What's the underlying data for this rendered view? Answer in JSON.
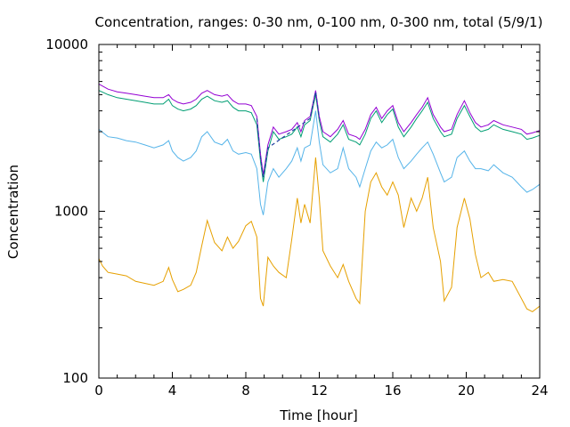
{
  "chart_data": {
    "type": "line",
    "title": "Concentration, ranges: 0-30 nm, 0-100 nm, 0-300 nm, total (5/9/1)",
    "xlabel": "Time [hour]",
    "ylabel": "Concentration",
    "xlim": [
      0,
      24
    ],
    "ylim": [
      100,
      10000
    ],
    "yscale": "log",
    "grid": false,
    "legend": "none",
    "x_ticks": [
      "0",
      "4",
      "8",
      "12",
      "16",
      "20",
      "24"
    ],
    "y_ticks": [
      "100",
      "1000",
      "10000"
    ],
    "series": [
      {
        "color": "#e6a000",
        "points": [
          [
            0,
            520
          ],
          [
            0.2,
            470
          ],
          [
            0.5,
            430
          ],
          [
            1,
            420
          ],
          [
            1.5,
            410
          ],
          [
            2,
            380
          ],
          [
            2.5,
            370
          ],
          [
            3,
            360
          ],
          [
            3.5,
            380
          ],
          [
            3.8,
            460
          ],
          [
            4,
            390
          ],
          [
            4.3,
            330
          ],
          [
            4.6,
            340
          ],
          [
            5,
            360
          ],
          [
            5.3,
            430
          ],
          [
            5.6,
            620
          ],
          [
            5.9,
            880
          ],
          [
            6.3,
            650
          ],
          [
            6.7,
            580
          ],
          [
            7,
            700
          ],
          [
            7.3,
            600
          ],
          [
            7.6,
            660
          ],
          [
            8,
            820
          ],
          [
            8.3,
            870
          ],
          [
            8.6,
            700
          ],
          [
            8.8,
            300
          ],
          [
            8.95,
            270
          ],
          [
            9.2,
            530
          ],
          [
            9.5,
            470
          ],
          [
            9.8,
            430
          ],
          [
            10.2,
            400
          ],
          [
            10.5,
            680
          ],
          [
            10.8,
            1200
          ],
          [
            11,
            850
          ],
          [
            11.2,
            1100
          ],
          [
            11.5,
            850
          ],
          [
            11.8,
            2100
          ],
          [
            12,
            1200
          ],
          [
            12.2,
            580
          ],
          [
            12.6,
            470
          ],
          [
            13,
            400
          ],
          [
            13.3,
            480
          ],
          [
            13.6,
            380
          ],
          [
            14,
            300
          ],
          [
            14.2,
            280
          ],
          [
            14.5,
            1000
          ],
          [
            14.8,
            1500
          ],
          [
            15.1,
            1700
          ],
          [
            15.4,
            1400
          ],
          [
            15.7,
            1250
          ],
          [
            16,
            1500
          ],
          [
            16.3,
            1250
          ],
          [
            16.6,
            800
          ],
          [
            17,
            1200
          ],
          [
            17.3,
            1000
          ],
          [
            17.6,
            1200
          ],
          [
            17.9,
            1600
          ],
          [
            18.2,
            800
          ],
          [
            18.6,
            500
          ],
          [
            18.8,
            290
          ],
          [
            19.2,
            350
          ],
          [
            19.5,
            800
          ],
          [
            19.9,
            1200
          ],
          [
            20.2,
            900
          ],
          [
            20.5,
            550
          ],
          [
            20.8,
            400
          ],
          [
            21.2,
            430
          ],
          [
            21.5,
            380
          ],
          [
            22,
            390
          ],
          [
            22.5,
            380
          ],
          [
            23,
            300
          ],
          [
            23.3,
            260
          ],
          [
            23.6,
            250
          ],
          [
            24,
            270
          ]
        ]
      },
      {
        "color": "#56b4e9",
        "points": [
          [
            0,
            3100
          ],
          [
            0.5,
            2800
          ],
          [
            1,
            2750
          ],
          [
            1.5,
            2650
          ],
          [
            2,
            2600
          ],
          [
            2.5,
            2500
          ],
          [
            3,
            2400
          ],
          [
            3.5,
            2500
          ],
          [
            3.8,
            2650
          ],
          [
            4,
            2300
          ],
          [
            4.3,
            2100
          ],
          [
            4.6,
            2000
          ],
          [
            5,
            2100
          ],
          [
            5.3,
            2300
          ],
          [
            5.6,
            2800
          ],
          [
            5.9,
            3000
          ],
          [
            6.3,
            2600
          ],
          [
            6.7,
            2500
          ],
          [
            7,
            2700
          ],
          [
            7.3,
            2300
          ],
          [
            7.6,
            2200
          ],
          [
            8,
            2250
          ],
          [
            8.3,
            2200
          ],
          [
            8.6,
            1800
          ],
          [
            8.8,
            1100
          ],
          [
            8.95,
            950
          ],
          [
            9.2,
            1500
          ],
          [
            9.5,
            1800
          ],
          [
            9.8,
            1600
          ],
          [
            10.2,
            1800
          ],
          [
            10.5,
            2000
          ],
          [
            10.8,
            2400
          ],
          [
            11,
            2000
          ],
          [
            11.2,
            2400
          ],
          [
            11.5,
            2500
          ],
          [
            11.8,
            4000
          ],
          [
            12,
            2600
          ],
          [
            12.2,
            1900
          ],
          [
            12.6,
            1700
          ],
          [
            13,
            1800
          ],
          [
            13.3,
            2400
          ],
          [
            13.6,
            1800
          ],
          [
            14,
            1600
          ],
          [
            14.2,
            1400
          ],
          [
            14.5,
            1800
          ],
          [
            14.8,
            2300
          ],
          [
            15.1,
            2600
          ],
          [
            15.4,
            2400
          ],
          [
            15.7,
            2500
          ],
          [
            16,
            2700
          ],
          [
            16.3,
            2100
          ],
          [
            16.6,
            1800
          ],
          [
            17,
            2000
          ],
          [
            17.3,
            2200
          ],
          [
            17.6,
            2400
          ],
          [
            17.9,
            2600
          ],
          [
            18.2,
            2200
          ],
          [
            18.6,
            1700
          ],
          [
            18.8,
            1500
          ],
          [
            19.2,
            1600
          ],
          [
            19.5,
            2100
          ],
          [
            19.9,
            2300
          ],
          [
            20.2,
            2000
          ],
          [
            20.5,
            1800
          ],
          [
            20.8,
            1800
          ],
          [
            21.2,
            1750
          ],
          [
            21.5,
            1900
          ],
          [
            22,
            1700
          ],
          [
            22.5,
            1600
          ],
          [
            23,
            1400
          ],
          [
            23.3,
            1300
          ],
          [
            23.6,
            1350
          ],
          [
            24,
            1450
          ]
        ]
      },
      {
        "color": "#009e73",
        "points": [
          [
            0,
            5300
          ],
          [
            0.5,
            5000
          ],
          [
            1,
            4800
          ],
          [
            1.5,
            4700
          ],
          [
            2,
            4600
          ],
          [
            2.5,
            4500
          ],
          [
            3,
            4400
          ],
          [
            3.5,
            4400
          ],
          [
            3.8,
            4700
          ],
          [
            4,
            4300
          ],
          [
            4.3,
            4100
          ],
          [
            4.6,
            4000
          ],
          [
            5,
            4100
          ],
          [
            5.3,
            4300
          ],
          [
            5.6,
            4700
          ],
          [
            5.9,
            4900
          ],
          [
            6.3,
            4600
          ],
          [
            6.7,
            4500
          ],
          [
            7,
            4600
          ],
          [
            7.3,
            4200
          ],
          [
            7.6,
            4000
          ],
          [
            8,
            4000
          ],
          [
            8.3,
            3900
          ],
          [
            8.6,
            3300
          ],
          [
            8.8,
            2000
          ],
          [
            8.95,
            1500
          ],
          [
            9.2,
            2300
          ],
          [
            9.5,
            3000
          ],
          [
            9.8,
            2700
          ],
          [
            10.2,
            2800
          ],
          [
            10.5,
            2900
          ],
          [
            10.8,
            3200
          ],
          [
            11,
            2800
          ],
          [
            11.2,
            3300
          ],
          [
            11.5,
            3500
          ],
          [
            11.8,
            5000
          ],
          [
            12,
            3500
          ],
          [
            12.2,
            2800
          ],
          [
            12.6,
            2600
          ],
          [
            13,
            2900
          ],
          [
            13.3,
            3300
          ],
          [
            13.6,
            2700
          ],
          [
            14,
            2600
          ],
          [
            14.2,
            2500
          ],
          [
            14.5,
            2900
          ],
          [
            14.8,
            3600
          ],
          [
            15.1,
            4000
          ],
          [
            15.4,
            3400
          ],
          [
            15.7,
            3800
          ],
          [
            16,
            4100
          ],
          [
            16.3,
            3200
          ],
          [
            16.6,
            2800
          ],
          [
            17,
            3200
          ],
          [
            17.3,
            3600
          ],
          [
            17.6,
            4000
          ],
          [
            17.9,
            4500
          ],
          [
            18.2,
            3600
          ],
          [
            18.6,
            3000
          ],
          [
            18.8,
            2800
          ],
          [
            19.2,
            2900
          ],
          [
            19.5,
            3600
          ],
          [
            19.9,
            4300
          ],
          [
            20.2,
            3700
          ],
          [
            20.5,
            3200
          ],
          [
            20.8,
            3000
          ],
          [
            21.2,
            3100
          ],
          [
            21.5,
            3300
          ],
          [
            22,
            3100
          ],
          [
            22.5,
            3000
          ],
          [
            23,
            2900
          ],
          [
            23.3,
            2700
          ],
          [
            23.6,
            2750
          ],
          [
            24,
            2850
          ]
        ]
      },
      {
        "color": "#9400d3",
        "points": [
          [
            0,
            5800
          ],
          [
            0.5,
            5400
          ],
          [
            1,
            5200
          ],
          [
            1.5,
            5100
          ],
          [
            2,
            5000
          ],
          [
            2.5,
            4900
          ],
          [
            3,
            4800
          ],
          [
            3.5,
            4800
          ],
          [
            3.8,
            5000
          ],
          [
            4,
            4700
          ],
          [
            4.3,
            4500
          ],
          [
            4.6,
            4400
          ],
          [
            5,
            4500
          ],
          [
            5.3,
            4700
          ],
          [
            5.6,
            5100
          ],
          [
            5.9,
            5300
          ],
          [
            6.3,
            5000
          ],
          [
            6.7,
            4900
          ],
          [
            7,
            5000
          ],
          [
            7.3,
            4600
          ],
          [
            7.6,
            4400
          ],
          [
            8,
            4400
          ],
          [
            8.3,
            4300
          ],
          [
            8.6,
            3700
          ],
          [
            8.8,
            2200
          ],
          [
            8.95,
            1650
          ],
          [
            9.2,
            2500
          ],
          [
            9.5,
            3200
          ],
          [
            9.8,
            2900
          ],
          [
            10.2,
            3000
          ],
          [
            10.5,
            3100
          ],
          [
            10.8,
            3400
          ],
          [
            11,
            3000
          ],
          [
            11.2,
            3500
          ],
          [
            11.5,
            3700
          ],
          [
            11.8,
            5300
          ],
          [
            12,
            3700
          ],
          [
            12.2,
            3000
          ],
          [
            12.6,
            2800
          ],
          [
            13,
            3100
          ],
          [
            13.3,
            3500
          ],
          [
            13.6,
            2900
          ],
          [
            14,
            2800
          ],
          [
            14.2,
            2700
          ],
          [
            14.5,
            3100
          ],
          [
            14.8,
            3800
          ],
          [
            15.1,
            4200
          ],
          [
            15.4,
            3600
          ],
          [
            15.7,
            4000
          ],
          [
            16,
            4300
          ],
          [
            16.3,
            3400
          ],
          [
            16.6,
            3000
          ],
          [
            17,
            3400
          ],
          [
            17.3,
            3800
          ],
          [
            17.6,
            4200
          ],
          [
            17.9,
            4800
          ],
          [
            18.2,
            3800
          ],
          [
            18.6,
            3200
          ],
          [
            18.8,
            3000
          ],
          [
            19.2,
            3100
          ],
          [
            19.5,
            3800
          ],
          [
            19.9,
            4600
          ],
          [
            20.2,
            3900
          ],
          [
            20.5,
            3400
          ],
          [
            20.8,
            3200
          ],
          [
            21.2,
            3300
          ],
          [
            21.5,
            3500
          ],
          [
            22,
            3300
          ],
          [
            22.5,
            3200
          ],
          [
            23,
            3100
          ],
          [
            23.3,
            2900
          ],
          [
            23.6,
            2950
          ],
          [
            24,
            3050
          ]
        ]
      },
      {
        "color": "#1f3fa0",
        "dashed": true,
        "points": [
          [
            8.6,
            3600
          ],
          [
            8.8,
            2100
          ],
          [
            8.95,
            1600
          ],
          [
            9.2,
            2400
          ],
          [
            11.5,
            3600
          ],
          [
            11.8,
            5200
          ],
          [
            12,
            3600
          ]
        ]
      }
    ]
  }
}
